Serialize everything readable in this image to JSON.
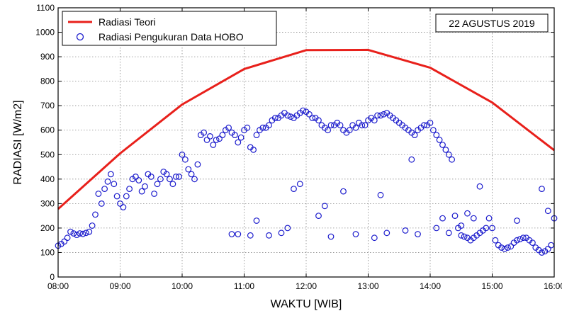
{
  "chart_data": {
    "type": "line+scatter",
    "annotation": "22 AGUSTUS 2019",
    "xlabel": "WAKTU [WIB]",
    "ylabel": "RADIASI [W/m2]",
    "xlim": [
      "08:00",
      "16:00"
    ],
    "ylim": [
      0,
      1100
    ],
    "x_ticks": [
      "08:00",
      "09:00",
      "10:00",
      "11:00",
      "12:00",
      "13:00",
      "14:00",
      "15:00",
      "16:00"
    ],
    "y_ticks": [
      0,
      100,
      200,
      300,
      400,
      500,
      600,
      700,
      800,
      900,
      1000,
      1100
    ],
    "grid": true,
    "legend_position": "top-left",
    "series": [
      {
        "name": "Radiasi Teori",
        "kind": "line",
        "color": "#e8201b",
        "x": [
          "08:00",
          "09:00",
          "10:00",
          "11:00",
          "12:00",
          "13:00",
          "14:00",
          "15:00",
          "16:00"
        ],
        "y": [
          278,
          505,
          705,
          850,
          927,
          928,
          855,
          713,
          518
        ]
      },
      {
        "name": "Radiasi Pengukuran Data HOBO",
        "kind": "scatter",
        "color": "#1a1acc",
        "x": [
          "08:00",
          "08:03",
          "08:06",
          "08:09",
          "08:12",
          "08:15",
          "08:18",
          "08:21",
          "08:24",
          "08:27",
          "08:30",
          "08:33",
          "08:36",
          "08:39",
          "08:42",
          "08:45",
          "08:48",
          "08:51",
          "08:54",
          "08:57",
          "09:00",
          "09:03",
          "09:06",
          "09:09",
          "09:12",
          "09:15",
          "09:18",
          "09:21",
          "09:24",
          "09:27",
          "09:30",
          "09:33",
          "09:36",
          "09:39",
          "09:42",
          "09:45",
          "09:48",
          "09:51",
          "09:54",
          "09:57",
          "10:00",
          "10:03",
          "10:06",
          "10:09",
          "10:12",
          "10:15",
          "10:18",
          "10:21",
          "10:24",
          "10:27",
          "10:30",
          "10:33",
          "10:36",
          "10:39",
          "10:42",
          "10:45",
          "10:48",
          "10:51",
          "10:54",
          "10:57",
          "11:00",
          "11:03",
          "11:06",
          "11:09",
          "11:12",
          "11:15",
          "11:18",
          "11:21",
          "11:24",
          "11:27",
          "11:30",
          "11:33",
          "11:36",
          "11:39",
          "11:42",
          "11:45",
          "11:48",
          "11:51",
          "11:54",
          "11:57",
          "12:00",
          "12:03",
          "12:06",
          "12:09",
          "12:12",
          "12:15",
          "12:18",
          "12:21",
          "12:24",
          "12:27",
          "12:30",
          "12:33",
          "12:36",
          "12:39",
          "12:42",
          "12:45",
          "12:48",
          "12:51",
          "12:54",
          "12:57",
          "13:00",
          "13:03",
          "13:06",
          "13:09",
          "13:12",
          "13:15",
          "13:18",
          "13:21",
          "13:24",
          "13:27",
          "13:30",
          "13:33",
          "13:36",
          "13:39",
          "13:42",
          "13:45",
          "13:48",
          "13:51",
          "13:54",
          "13:57",
          "14:00",
          "14:03",
          "14:06",
          "14:09",
          "14:12",
          "14:15",
          "14:18",
          "14:21",
          "14:24",
          "14:27",
          "14:30",
          "14:33",
          "14:36",
          "14:39",
          "14:42",
          "14:45",
          "14:48",
          "14:51",
          "14:54",
          "14:57",
          "15:00",
          "15:03",
          "15:06",
          "15:09",
          "15:12",
          "15:15",
          "15:18",
          "15:21",
          "15:24",
          "15:27",
          "15:30",
          "15:33",
          "15:36",
          "15:39",
          "15:42",
          "15:45",
          "15:48",
          "15:51",
          "15:54",
          "15:57",
          "16:00",
          "10:48",
          "11:12",
          "11:24",
          "11:36",
          "11:48",
          "12:12",
          "12:24",
          "12:48",
          "13:06",
          "13:18",
          "13:36",
          "13:48",
          "14:06",
          "14:18",
          "14:30",
          "14:42",
          "10:54",
          "11:06",
          "11:42",
          "11:54",
          "12:18",
          "12:36",
          "13:12",
          "13:42",
          "14:12",
          "14:36",
          "14:48",
          "15:24",
          "15:48",
          "15:54"
        ],
        "y": [
          128,
          135,
          145,
          160,
          185,
          178,
          172,
          178,
          176,
          180,
          185,
          210,
          255,
          340,
          300,
          360,
          390,
          420,
          380,
          330,
          300,
          285,
          330,
          360,
          400,
          410,
          395,
          350,
          370,
          420,
          410,
          340,
          380,
          400,
          430,
          420,
          400,
          380,
          410,
          410,
          500,
          480,
          440,
          420,
          400,
          460,
          580,
          590,
          560,
          575,
          540,
          560,
          565,
          580,
          600,
          610,
          590,
          580,
          550,
          570,
          600,
          610,
          530,
          520,
          580,
          600,
          610,
          610,
          620,
          640,
          650,
          650,
          660,
          670,
          660,
          655,
          650,
          660,
          670,
          680,
          675,
          665,
          650,
          650,
          640,
          620,
          610,
          600,
          620,
          620,
          630,
          620,
          600,
          590,
          600,
          620,
          610,
          630,
          620,
          620,
          640,
          650,
          640,
          660,
          660,
          665,
          670,
          660,
          650,
          640,
          630,
          620,
          610,
          600,
          590,
          580,
          600,
          610,
          620,
          620,
          630,
          600,
          580,
          560,
          540,
          520,
          500,
          480,
          250,
          200,
          170,
          165,
          160,
          150,
          160,
          170,
          180,
          190,
          200,
          240,
          200,
          150,
          130,
          120,
          115,
          120,
          125,
          140,
          150,
          155,
          160,
          160,
          150,
          140,
          120,
          110,
          100,
          105,
          115,
          130,
          240,
          175,
          230,
          170,
          180,
          360,
          250,
          165,
          175,
          160,
          180,
          190,
          175,
          200,
          180,
          210,
          240,
          175,
          170,
          200,
          380,
          290,
          350,
          335,
          480,
          240,
          260,
          370,
          230,
          360,
          270
        ]
      }
    ]
  }
}
